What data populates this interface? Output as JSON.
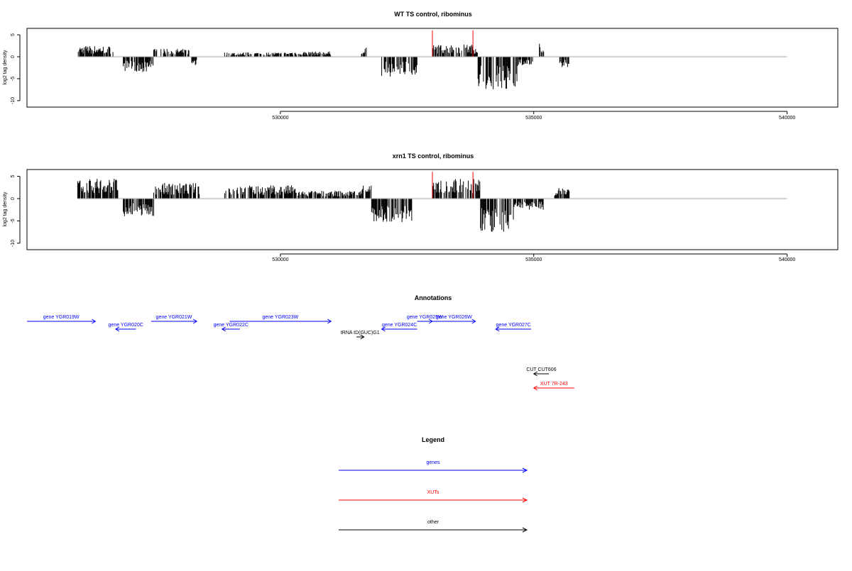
{
  "chart_data": [
    {
      "type": "bar",
      "title": "WT TS control, ribominus",
      "ylabel": "log2 tag density",
      "xlim": [
        525000,
        541000
      ],
      "ylim": [
        -11,
        6
      ],
      "x_ticks": [
        "530000",
        "535000",
        "540000"
      ],
      "y_ticks": [
        "5",
        "0",
        "-5",
        "-10"
      ],
      "data_range": [
        526000,
        535700
      ],
      "profile": [
        {
          "x0": 526000,
          "x1": 526700,
          "amp": 2.5,
          "sign": 1
        },
        {
          "x0": 526900,
          "x1": 527500,
          "amp": 3.5,
          "sign": -1
        },
        {
          "x0": 527500,
          "x1": 528200,
          "amp": 1.8,
          "sign": 1
        },
        {
          "x0": 528250,
          "x1": 528350,
          "amp": 2.2,
          "sign": -1
        },
        {
          "x0": 528900,
          "x1": 530200,
          "amp": 1.0,
          "sign": 1
        },
        {
          "x0": 530200,
          "x1": 531000,
          "amp": 1.2,
          "sign": 1
        },
        {
          "x0": 531600,
          "x1": 531700,
          "amp": 2.2,
          "sign": 1
        },
        {
          "x0": 532000,
          "x1": 532700,
          "amp": 4.5,
          "sign": -1
        },
        {
          "x0": 533000,
          "x1": 533900,
          "amp": 2.8,
          "sign": 1
        },
        {
          "x0": 533900,
          "x1": 534700,
          "amp": 7.5,
          "sign": -1
        },
        {
          "x0": 534700,
          "x1": 535000,
          "amp": 2.0,
          "sign": -1
        },
        {
          "x0": 535100,
          "x1": 535200,
          "amp": 3.0,
          "sign": 1
        },
        {
          "x0": 535500,
          "x1": 535700,
          "amp": 2.5,
          "sign": -1
        }
      ],
      "highlights": [
        {
          "x": 533000,
          "y": 6
        },
        {
          "x": 533800,
          "y": 6
        }
      ]
    },
    {
      "type": "bar",
      "title": "xrn1 TS control, ribominus",
      "ylabel": "log2 tag density",
      "xlim": [
        525000,
        541000
      ],
      "ylim": [
        -11,
        6
      ],
      "x_ticks": [
        "530000",
        "535000",
        "540000"
      ],
      "y_ticks": [
        "5",
        "0",
        "-5",
        "-10"
      ],
      "data_range": [
        526000,
        535700
      ],
      "profile": [
        {
          "x0": 526000,
          "x1": 526800,
          "amp": 4.5,
          "sign": 1
        },
        {
          "x0": 526900,
          "x1": 527500,
          "amp": 4.0,
          "sign": -1
        },
        {
          "x0": 527500,
          "x1": 528400,
          "amp": 3.5,
          "sign": 1
        },
        {
          "x0": 528900,
          "x1": 530300,
          "amp": 3.0,
          "sign": 1
        },
        {
          "x0": 530300,
          "x1": 531600,
          "amp": 1.8,
          "sign": 1
        },
        {
          "x0": 531600,
          "x1": 531800,
          "amp": 3.5,
          "sign": 1
        },
        {
          "x0": 531800,
          "x1": 532600,
          "amp": 5.5,
          "sign": -1
        },
        {
          "x0": 533000,
          "x1": 533950,
          "amp": 4.5,
          "sign": 1
        },
        {
          "x0": 533950,
          "x1": 534600,
          "amp": 7.5,
          "sign": -1
        },
        {
          "x0": 534600,
          "x1": 535200,
          "amp": 2.5,
          "sign": -1
        },
        {
          "x0": 535400,
          "x1": 535700,
          "amp": 2.5,
          "sign": 1
        }
      ],
      "highlights": [
        {
          "x": 533000,
          "y": 6
        },
        {
          "x": 533800,
          "y": 6
        }
      ]
    }
  ],
  "annotations": {
    "title": "Annotations",
    "items": [
      {
        "label": "gene YGR019W",
        "start": 525000,
        "end": 526350,
        "dir": "fwd",
        "row": 0,
        "kind": "gene"
      },
      {
        "label": "gene YGR020C",
        "start": 526750,
        "end": 527150,
        "dir": "rev",
        "row": 1,
        "kind": "gene"
      },
      {
        "label": "gene YGR021W",
        "start": 527450,
        "end": 528350,
        "dir": "fwd",
        "row": 0,
        "kind": "gene"
      },
      {
        "label": "gene YGR022C",
        "start": 528850,
        "end": 529200,
        "dir": "rev",
        "row": 1,
        "kind": "gene"
      },
      {
        "label": "gene YGR023W",
        "start": 529000,
        "end": 531000,
        "dir": "fwd",
        "row": 0,
        "kind": "gene"
      },
      {
        "label": "tRNA tD(GUC)G1",
        "start": 531500,
        "end": 531650,
        "dir": "fwd",
        "row": 2,
        "kind": "other"
      },
      {
        "label": "gene YGR024C",
        "start": 532000,
        "end": 532700,
        "dir": "rev",
        "row": 1,
        "kind": "gene"
      },
      {
        "label": "gene YGR025W",
        "start": 532700,
        "end": 533000,
        "dir": "fwd",
        "row": 0,
        "kind": "gene"
      },
      {
        "label": "gene YGR026W",
        "start": 533000,
        "end": 533850,
        "dir": "fwd",
        "row": 0,
        "kind": "gene"
      },
      {
        "label": "gene YGR027C",
        "start": 534250,
        "end": 534950,
        "dir": "rev",
        "row": 1,
        "kind": "gene"
      },
      {
        "label": "CUT CUT606",
        "start": 535000,
        "end": 535300,
        "dir": "rev",
        "row": 3,
        "kind": "other"
      },
      {
        "label": "XUT 7R-243",
        "start": 535000,
        "end": 535800,
        "dir": "rev",
        "row": 4,
        "kind": "xut"
      }
    ]
  },
  "legend": {
    "title": "Legend",
    "items": [
      {
        "label": "genes",
        "color": "#0000ff"
      },
      {
        "label": "XUTs",
        "color": "#ff0000"
      },
      {
        "label": "other",
        "color": "#000000"
      }
    ]
  },
  "colors": {
    "gene": "#0000ff",
    "xut": "#ff0000",
    "other": "#000000",
    "baseline": "#aaaaaa",
    "highlight": "#ff0000"
  }
}
